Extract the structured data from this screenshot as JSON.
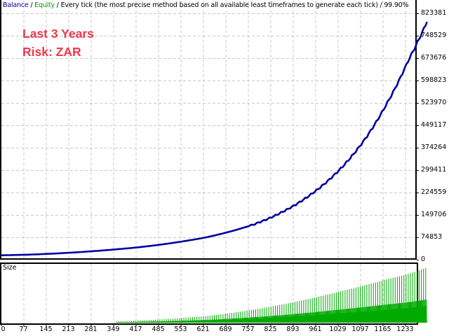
{
  "header": {
    "balance_label": "Balance",
    "sep1": " / ",
    "equity_label": "Equity",
    "description": " / Every tick (the most precise method based on all available least timeframes to generate each tick) / 99.90%"
  },
  "annotations": {
    "line1": "Last 3 Years",
    "line2": "Risk: ZAR"
  },
  "subpanel": {
    "title": "Size"
  },
  "colors": {
    "balance": "#0000a0",
    "equity": "#00a000",
    "annotation": "#f0374a",
    "grid": "#c8c8c8",
    "size_bars": "#00aa00"
  },
  "chart_data": [
    {
      "type": "line",
      "title": "Balance / Equity",
      "xlabel": "",
      "ylabel": "",
      "ylim": [
        0,
        823381
      ],
      "yticks": [
        823381,
        748529,
        673676,
        598823,
        523970,
        449117,
        374264,
        299411,
        224559,
        149706,
        74853,
        0
      ],
      "xticks": [
        0,
        77,
        145,
        213,
        281,
        349,
        417,
        485,
        553,
        621,
        689,
        757,
        825,
        893,
        961,
        1029,
        1097,
        1165,
        1233
      ],
      "grid": true,
      "series": [
        {
          "name": "Balance",
          "x": [
            0,
            77,
            145,
            213,
            281,
            349,
            417,
            485,
            553,
            621,
            689,
            757,
            825,
            893,
            961,
            1029,
            1097,
            1165,
            1233,
            1290
          ],
          "values": [
            10000,
            12000,
            15000,
            19000,
            24000,
            30000,
            37000,
            46000,
            57000,
            70000,
            88000,
            110000,
            140000,
            180000,
            232000,
            300000,
            390000,
            510000,
            660000,
            790000
          ]
        }
      ]
    },
    {
      "type": "bar",
      "title": "Size",
      "xticks": [
        0,
        77,
        145,
        213,
        281,
        349,
        417,
        485,
        553,
        621,
        689,
        757,
        825,
        893,
        961,
        1029,
        1097,
        1165,
        1233
      ],
      "note": "Position size bars grow exponentially from ~x=349 to the end",
      "x": [
        349,
        417,
        485,
        553,
        621,
        689,
        757,
        825,
        893,
        961,
        1029,
        1097,
        1165,
        1233,
        1290
      ],
      "values": [
        0.02,
        0.04,
        0.06,
        0.09,
        0.12,
        0.17,
        0.23,
        0.3,
        0.38,
        0.47,
        0.57,
        0.67,
        0.78,
        0.88,
        1.0
      ]
    }
  ],
  "y_axis_labels": [
    "823381",
    "748529",
    "673676",
    "598823",
    "523970",
    "449117",
    "374264",
    "299411",
    "224559",
    "149706",
    "74853",
    "0"
  ],
  "x_axis_labels": [
    "0",
    "77",
    "145",
    "213",
    "281",
    "349",
    "417",
    "485",
    "553",
    "621",
    "689",
    "757",
    "825",
    "893",
    "961",
    "1029",
    "1097",
    "1165",
    "1233"
  ]
}
